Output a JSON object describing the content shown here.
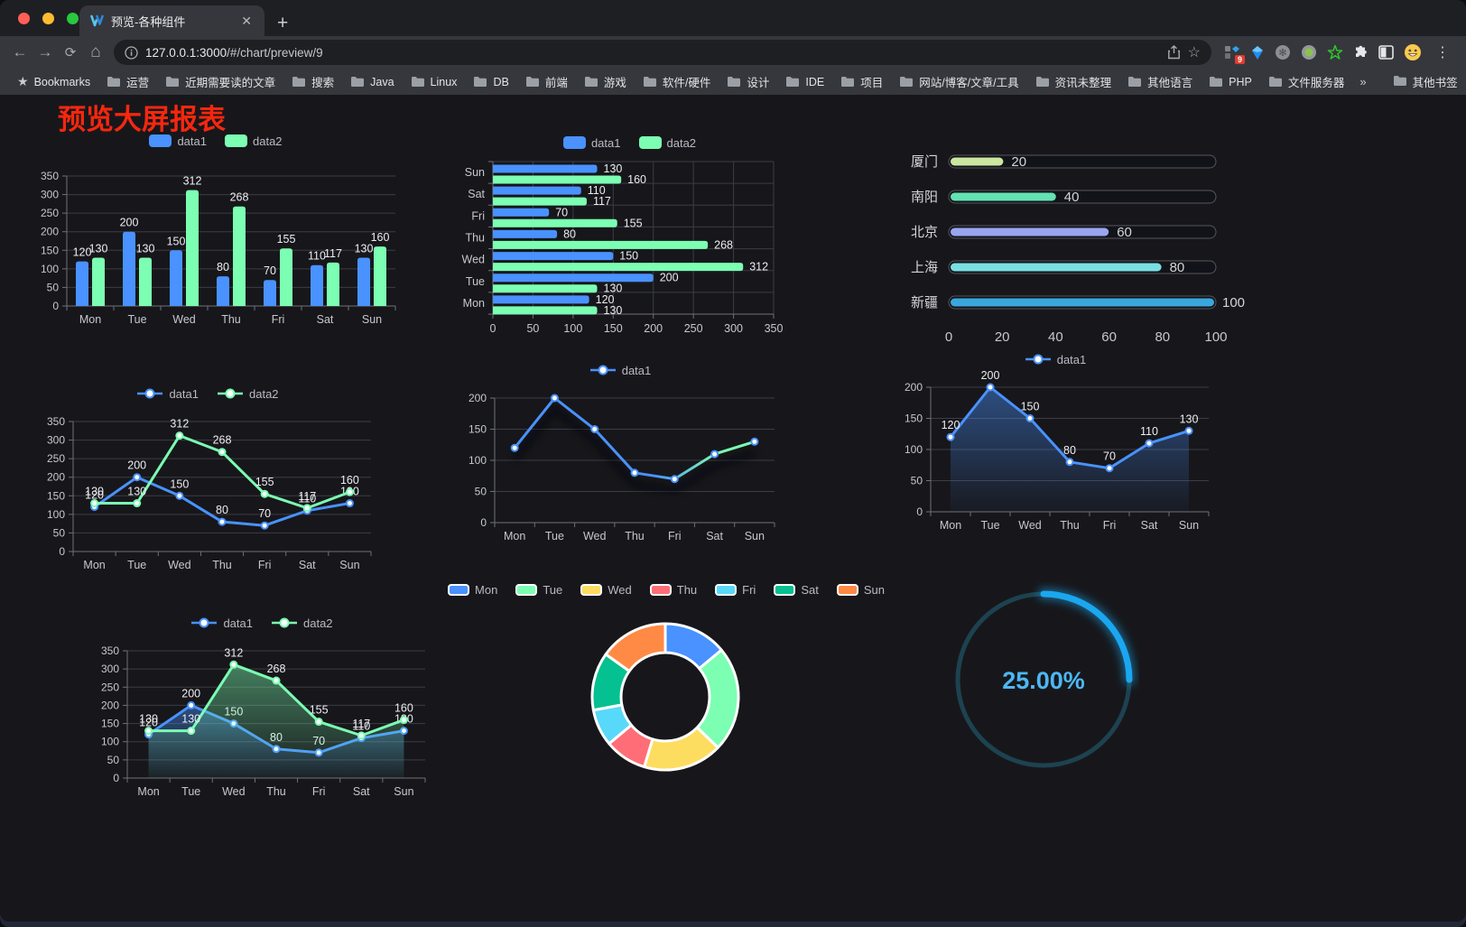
{
  "browser": {
    "tab_title": "预览-各种组件",
    "url_host": "127.0.0.1:3000",
    "url_path": "/#/chart/preview/9",
    "extension_badge": "9",
    "bookmarks_label": "Bookmarks",
    "bookmarks": [
      "运营",
      "近期需要读的文章",
      "搜索",
      "Java",
      "Linux",
      "DB",
      "前端",
      "游戏",
      "软件/硬件",
      "设计",
      "IDE",
      "项目",
      "网站/博客/文章/工具",
      "资讯未整理",
      "其他语言",
      "PHP",
      "文件服务器"
    ],
    "overflow_chevron": "»",
    "other_bookmarks": "其他书签"
  },
  "page": {
    "title": "预览大屏报表",
    "title_color": "#f5270e"
  },
  "chart_data": [
    {
      "id": "bar-grouped",
      "type": "bar",
      "legend_position": "top",
      "categories": [
        "Mon",
        "Tue",
        "Wed",
        "Thu",
        "Fri",
        "Sat",
        "Sun"
      ],
      "series": [
        {
          "name": "data1",
          "color": "#4992ff",
          "values": [
            120,
            200,
            150,
            80,
            70,
            110,
            130
          ]
        },
        {
          "name": "data2",
          "color": "#7cffb2",
          "values": [
            130,
            130,
            312,
            268,
            155,
            117,
            160
          ]
        }
      ],
      "ylim": [
        0,
        350
      ],
      "ytick": 50
    },
    {
      "id": "hbar-grouped",
      "type": "hbar",
      "legend_position": "top",
      "categories": [
        "Mon",
        "Tue",
        "Wed",
        "Thu",
        "Fri",
        "Sat",
        "Sun"
      ],
      "series": [
        {
          "name": "data1",
          "color": "#4992ff",
          "values": [
            120,
            200,
            150,
            80,
            70,
            110,
            130
          ]
        },
        {
          "name": "data2",
          "color": "#7cffb2",
          "values": [
            130,
            130,
            312,
            268,
            155,
            117,
            160
          ]
        }
      ],
      "xlim": [
        0,
        350
      ],
      "xtick": 50
    },
    {
      "id": "progress-bars",
      "type": "progress",
      "categories": [
        "厦门",
        "南阳",
        "北京",
        "上海",
        "新疆"
      ],
      "values": [
        20,
        40,
        60,
        80,
        100
      ],
      "colors": [
        "#cbe7a0",
        "#63e2b2",
        "#99a5f0",
        "#7adfe2",
        "#3aa7dc"
      ],
      "xlim": [
        0,
        100
      ],
      "xtick": 20
    },
    {
      "id": "line-two",
      "type": "line",
      "legend_position": "top",
      "categories": [
        "Mon",
        "Tue",
        "Wed",
        "Thu",
        "Fri",
        "Sat",
        "Sun"
      ],
      "series": [
        {
          "name": "data1",
          "color": "#4992ff",
          "values": [
            120,
            200,
            150,
            80,
            70,
            110,
            130
          ],
          "labels": true
        },
        {
          "name": "data2",
          "color": "#7cffb2",
          "values": [
            130,
            130,
            312,
            268,
            155,
            117,
            160
          ],
          "labels": true
        }
      ],
      "ylim": [
        0,
        350
      ],
      "ytick": 50
    },
    {
      "id": "line-gradient",
      "type": "line",
      "legend_position": "top",
      "categories": [
        "Mon",
        "Tue",
        "Wed",
        "Thu",
        "Fri",
        "Sat",
        "Sun"
      ],
      "series": [
        {
          "name": "data1",
          "color": "#4992ff",
          "values": [
            120,
            200,
            150,
            80,
            70,
            110,
            130
          ],
          "labels": false
        }
      ],
      "gradient_stroke": [
        "#4992ff",
        "#7cffb2"
      ],
      "shadow": true,
      "ylim": [
        0,
        200
      ],
      "ytick": 50
    },
    {
      "id": "area-single",
      "type": "line",
      "legend_position": "top",
      "categories": [
        "Mon",
        "Tue",
        "Wed",
        "Thu",
        "Fri",
        "Sat",
        "Sun"
      ],
      "series": [
        {
          "name": "data1",
          "color": "#4992ff",
          "values": [
            120,
            200,
            150,
            80,
            70,
            110,
            130
          ],
          "labels": true,
          "area": true
        }
      ],
      "ylim": [
        0,
        200
      ],
      "ytick": 50
    },
    {
      "id": "area-two",
      "type": "line",
      "legend_position": "top",
      "categories": [
        "Mon",
        "Tue",
        "Wed",
        "Thu",
        "Fri",
        "Sat",
        "Sun"
      ],
      "series": [
        {
          "name": "data1",
          "color": "#4992ff",
          "values": [
            120,
            200,
            150,
            80,
            70,
            110,
            130
          ],
          "labels": true,
          "area": true
        },
        {
          "name": "data2",
          "color": "#7cffb2",
          "values": [
            130,
            130,
            312,
            268,
            155,
            117,
            160
          ],
          "labels": true,
          "area": true
        }
      ],
      "ylim": [
        0,
        350
      ],
      "ytick": 50
    },
    {
      "id": "donut",
      "type": "pie",
      "legend_position": "top",
      "categories": [
        "Mon",
        "Tue",
        "Wed",
        "Thu",
        "Fri",
        "Sat",
        "Sun"
      ],
      "values": [
        120,
        200,
        150,
        80,
        70,
        110,
        130
      ],
      "colors": [
        "#4992ff",
        "#7cffb2",
        "#fddd60",
        "#ff6e76",
        "#58d9f9",
        "#05c091",
        "#ff8a45"
      ]
    },
    {
      "id": "gauge",
      "type": "gauge",
      "value": 25,
      "value_label": "25.00%",
      "color": "#1aa7f0",
      "track_color": "#1d4250"
    }
  ]
}
